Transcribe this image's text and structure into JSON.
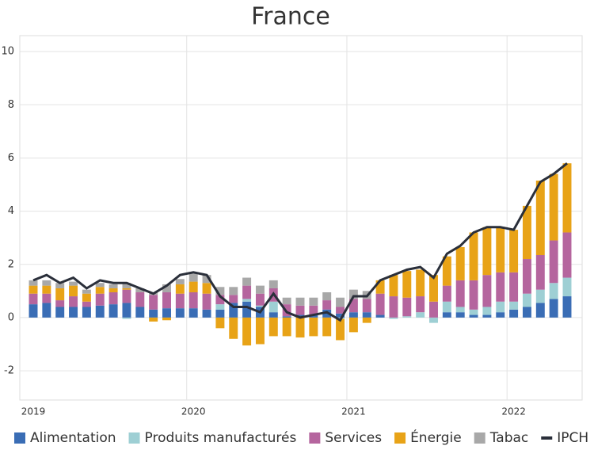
{
  "chart_data": {
    "type": "bar",
    "stacked": true,
    "title": "France",
    "categories": [
      "2019",
      null,
      null,
      null,
      null,
      null,
      null,
      null,
      null,
      null,
      null,
      null,
      "2020",
      null,
      null,
      null,
      null,
      null,
      null,
      null,
      null,
      null,
      null,
      null,
      "2021",
      null,
      null,
      null,
      null,
      null,
      null,
      null,
      null,
      null,
      null,
      null,
      "2022",
      null,
      null,
      null,
      null
    ],
    "series": [
      {
        "name": "Alimentation",
        "color": "#3a6db5",
        "values": [
          0.5,
          0.55,
          0.4,
          0.4,
          0.4,
          0.45,
          0.5,
          0.55,
          0.4,
          0.3,
          0.35,
          0.35,
          0.35,
          0.3,
          0.3,
          0.55,
          0.6,
          0.4,
          0.2,
          0.05,
          0.1,
          0.1,
          0.3,
          0.15,
          0.2,
          0.2,
          0.1,
          0,
          0,
          0,
          0,
          0.2,
          0.2,
          0.1,
          0.1,
          0.2,
          0.3,
          0.4,
          0.55,
          0.7,
          0.8
        ]
      },
      {
        "name": "Produits manufacturés",
        "color": "#9ecfd4",
        "values": [
          0,
          0,
          0,
          0,
          0,
          0,
          0,
          -0.05,
          0,
          0,
          0,
          0,
          0,
          0,
          0.2,
          0,
          0.1,
          0.05,
          0.4,
          0,
          0,
          0,
          0,
          -0.05,
          0,
          0,
          0,
          -0.05,
          0.05,
          0.2,
          -0.2,
          0.4,
          0.2,
          0.2,
          0.3,
          0.4,
          0.3,
          0.5,
          0.5,
          0.6,
          0.7
        ]
      },
      {
        "name": "Services",
        "color": "#b5659e",
        "values": [
          0.4,
          0.35,
          0.25,
          0.4,
          0.2,
          0.45,
          0.45,
          0.5,
          0.55,
          0.55,
          0.6,
          0.55,
          0.6,
          0.6,
          0.35,
          0.3,
          0.5,
          0.45,
          0.5,
          0.45,
          0.35,
          0.35,
          0.35,
          0.25,
          0.5,
          0.5,
          0.8,
          0.8,
          0.7,
          0.6,
          0.6,
          0.6,
          1,
          1.1,
          1.2,
          1.1,
          1.1,
          1.3,
          1.3,
          1.6,
          1.7
        ]
      },
      {
        "name": "Énergie",
        "color": "#e8a317",
        "values": [
          0.3,
          0.3,
          0.45,
          0.4,
          0.3,
          0.25,
          0.15,
          0.05,
          0,
          -0.15,
          -0.1,
          0.35,
          0.4,
          0.4,
          -0.4,
          -0.8,
          -1.05,
          -1,
          -0.7,
          -0.7,
          -0.75,
          -0.7,
          -0.7,
          -0.8,
          -0.55,
          -0.2,
          0.5,
          0.8,
          1,
          1,
          1,
          1.1,
          1.25,
          1.8,
          1.8,
          1.7,
          1.6,
          2,
          2.8,
          2.5,
          2.6
        ]
      },
      {
        "name": "Tabac",
        "color": "#a8a8a8",
        "values": [
          0.2,
          0.2,
          0.2,
          0.15,
          0.15,
          0.15,
          0.15,
          0.2,
          0.15,
          0.1,
          0.3,
          0.2,
          0.3,
          0.3,
          0.3,
          0.3,
          0.3,
          0.3,
          0.3,
          0.25,
          0.3,
          0.3,
          0.3,
          0.35,
          0.35,
          0.3,
          0,
          0,
          0,
          0,
          0,
          0,
          0,
          0,
          0,
          0,
          0,
          0,
          0,
          0,
          0
        ]
      },
      {
        "name": "IPCH",
        "color": "#2a2f3a",
        "type": "line",
        "values": [
          1.4,
          1.6,
          1.3,
          1.5,
          1.1,
          1.4,
          1.3,
          1.3,
          1.1,
          0.9,
          1.2,
          1.6,
          1.7,
          1.6,
          0.8,
          0.4,
          0.4,
          0.2,
          0.9,
          0.2,
          0,
          0.1,
          0.2,
          -0.1,
          0.8,
          0.8,
          1.4,
          1.6,
          1.8,
          1.9,
          1.5,
          2.4,
          2.7,
          3.2,
          3.4,
          3.4,
          3.3,
          4.2,
          5.1,
          5.4,
          5.8
        ]
      }
    ],
    "ylim": [
      -3.1,
      10.6
    ],
    "yticks": [
      -2,
      0,
      2,
      4,
      6,
      8,
      10
    ],
    "grid": true,
    "legend": "bottom"
  }
}
